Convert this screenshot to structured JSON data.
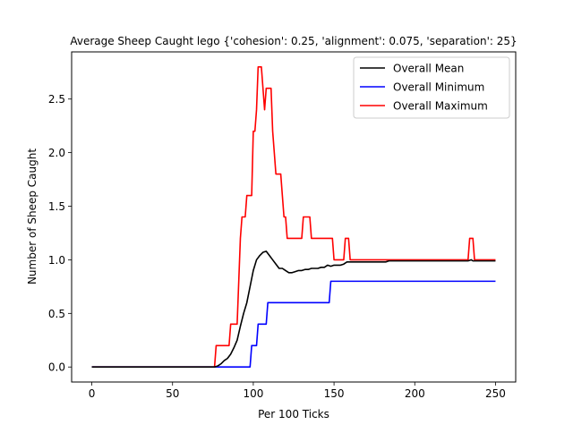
{
  "chart_data": {
    "type": "line",
    "title": "Average Sheep Caught lego {'cohesion': 0.25, 'alignment': 0.075, 'separation': 25}",
    "xlabel": "Per 100 Ticks",
    "ylabel": "Number of Sheep Caught",
    "xlim": [
      -12.5,
      262.5
    ],
    "ylim": [
      -0.14,
      2.94
    ],
    "xticks": [
      0,
      50,
      100,
      150,
      200,
      250
    ],
    "yticks": [
      0.0,
      0.5,
      1.0,
      1.5,
      2.0,
      2.5
    ],
    "xtick_labels": [
      "0",
      "50",
      "100",
      "150",
      "200",
      "250"
    ],
    "ytick_labels": [
      "0.0",
      "0.5",
      "1.0",
      "1.5",
      "2.0",
      "2.5"
    ],
    "legend_position": "upper right",
    "grid": false,
    "series": [
      {
        "name": "Overall Mean",
        "color": "#000000",
        "points": [
          [
            0,
            0
          ],
          [
            76,
            0
          ],
          [
            78,
            0.01
          ],
          [
            80,
            0.03
          ],
          [
            82,
            0.06
          ],
          [
            84,
            0.08
          ],
          [
            86,
            0.12
          ],
          [
            88,
            0.18
          ],
          [
            90,
            0.25
          ],
          [
            92,
            0.38
          ],
          [
            94,
            0.5
          ],
          [
            96,
            0.6
          ],
          [
            98,
            0.75
          ],
          [
            100,
            0.9
          ],
          [
            102,
            1.0
          ],
          [
            104,
            1.04
          ],
          [
            106,
            1.07
          ],
          [
            108,
            1.08
          ],
          [
            110,
            1.04
          ],
          [
            112,
            1.0
          ],
          [
            114,
            0.96
          ],
          [
            116,
            0.92
          ],
          [
            118,
            0.92
          ],
          [
            120,
            0.9
          ],
          [
            122,
            0.88
          ],
          [
            124,
            0.88
          ],
          [
            126,
            0.89
          ],
          [
            128,
            0.9
          ],
          [
            130,
            0.9
          ],
          [
            132,
            0.91
          ],
          [
            134,
            0.91
          ],
          [
            136,
            0.92
          ],
          [
            138,
            0.92
          ],
          [
            140,
            0.92
          ],
          [
            142,
            0.93
          ],
          [
            144,
            0.93
          ],
          [
            146,
            0.95
          ],
          [
            148,
            0.94
          ],
          [
            150,
            0.95
          ],
          [
            154,
            0.95
          ],
          [
            156,
            0.96
          ],
          [
            158,
            0.98
          ],
          [
            160,
            0.98
          ],
          [
            182,
            0.98
          ],
          [
            184,
            0.99
          ],
          [
            233,
            0.99
          ],
          [
            235,
            1.0
          ],
          [
            236,
            0.99
          ],
          [
            250,
            0.99
          ]
        ]
      },
      {
        "name": "Overall Minimum",
        "color": "#0000ff",
        "points": [
          [
            0,
            0
          ],
          [
            98,
            0
          ],
          [
            99,
            0.2
          ],
          [
            102,
            0.2
          ],
          [
            103,
            0.4
          ],
          [
            108,
            0.4
          ],
          [
            109,
            0.6
          ],
          [
            147,
            0.6
          ],
          [
            148,
            0.8
          ],
          [
            250,
            0.8
          ]
        ]
      },
      {
        "name": "Overall Maximum",
        "color": "#ff0000",
        "points": [
          [
            0,
            0
          ],
          [
            76,
            0
          ],
          [
            77,
            0.2
          ],
          [
            85,
            0.2
          ],
          [
            86,
            0.4
          ],
          [
            90,
            0.4
          ],
          [
            91,
            0.8
          ],
          [
            92,
            1.2
          ],
          [
            93,
            1.4
          ],
          [
            95,
            1.4
          ],
          [
            96,
            1.6
          ],
          [
            99,
            1.6
          ],
          [
            100,
            2.2
          ],
          [
            101,
            2.2
          ],
          [
            102,
            2.4
          ],
          [
            103,
            2.8
          ],
          [
            105,
            2.8
          ],
          [
            106,
            2.6
          ],
          [
            107,
            2.4
          ],
          [
            108,
            2.6
          ],
          [
            111,
            2.6
          ],
          [
            112,
            2.2
          ],
          [
            113,
            2.0
          ],
          [
            114,
            1.8
          ],
          [
            117,
            1.8
          ],
          [
            118,
            1.6
          ],
          [
            119,
            1.4
          ],
          [
            120,
            1.4
          ],
          [
            121,
            1.2
          ],
          [
            130,
            1.2
          ],
          [
            131,
            1.4
          ],
          [
            135,
            1.4
          ],
          [
            136,
            1.2
          ],
          [
            149,
            1.2
          ],
          [
            150,
            1.0
          ],
          [
            156,
            1.0
          ],
          [
            157,
            1.2
          ],
          [
            159,
            1.2
          ],
          [
            160,
            1.0
          ],
          [
            233,
            1.0
          ],
          [
            234,
            1.2
          ],
          [
            236,
            1.2
          ],
          [
            237,
            1.0
          ],
          [
            250,
            1.0
          ]
        ]
      }
    ]
  }
}
